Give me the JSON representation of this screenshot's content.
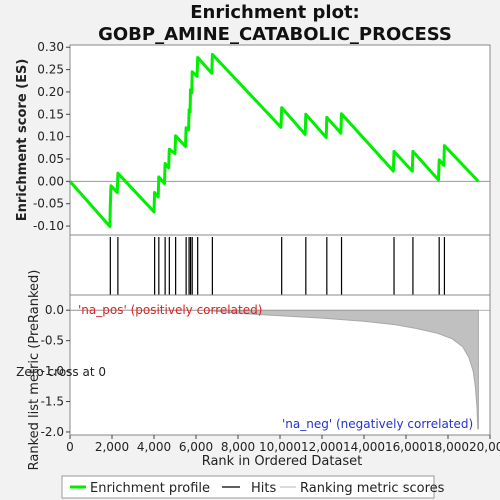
{
  "chart_data": {
    "type": "line",
    "title": [
      "Enrichment plot:",
      "GOBP_AMINE_CATABOLIC_PROCESS"
    ],
    "xlabel": "Rank in Ordered Dataset",
    "xlim": [
      0,
      20000
    ],
    "x_ticks": [
      "0",
      "2,000",
      "4,000",
      "6,000",
      "8,000",
      "10,000",
      "12,000",
      "14,000",
      "16,000",
      "18,000",
      "20,000"
    ],
    "es_panel": {
      "ylabel": "Enrichment score (ES)",
      "ylim": [
        -0.12,
        0.305
      ],
      "y_ticks": [
        "0.30",
        "0.25",
        "0.20",
        "0.15",
        "0.10",
        "0.05",
        "0.00",
        "-0.05",
        "-0.10"
      ],
      "series_name": "Enrichment profile",
      "color": "#00ee00",
      "points": [
        [
          0,
          0.0
        ],
        [
          1900,
          -0.101
        ],
        [
          1920,
          -0.055
        ],
        [
          1950,
          -0.01
        ],
        [
          2250,
          -0.025
        ],
        [
          2280,
          0.018
        ],
        [
          4000,
          -0.068
        ],
        [
          4030,
          -0.025
        ],
        [
          4200,
          -0.035
        ],
        [
          4230,
          0.01
        ],
        [
          4500,
          -0.005
        ],
        [
          4530,
          0.04
        ],
        [
          4700,
          0.03
        ],
        [
          4730,
          0.072
        ],
        [
          5000,
          0.062
        ],
        [
          5030,
          0.102
        ],
        [
          5500,
          0.078
        ],
        [
          5530,
          0.12
        ],
        [
          5650,
          0.115
        ],
        [
          5670,
          0.16
        ],
        [
          5720,
          0.155
        ],
        [
          5740,
          0.205
        ],
        [
          5800,
          0.198
        ],
        [
          5820,
          0.245
        ],
        [
          6050,
          0.235
        ],
        [
          6080,
          0.277
        ],
        [
          6750,
          0.242
        ],
        [
          6780,
          0.284
        ],
        [
          10050,
          0.121
        ],
        [
          10080,
          0.165
        ],
        [
          11200,
          0.105
        ],
        [
          11230,
          0.15
        ],
        [
          12200,
          0.098
        ],
        [
          12230,
          0.143
        ],
        [
          12900,
          0.108
        ],
        [
          12930,
          0.151
        ],
        [
          15400,
          0.023
        ],
        [
          15430,
          0.067
        ],
        [
          16300,
          0.023
        ],
        [
          16330,
          0.067
        ],
        [
          17550,
          0.003
        ],
        [
          17580,
          0.048
        ],
        [
          17800,
          0.036
        ],
        [
          17830,
          0.08
        ],
        [
          19450,
          0.0
        ]
      ]
    },
    "hits_panel": {
      "series_name": "Hits",
      "hits": [
        1920,
        2280,
        4030,
        4230,
        4530,
        4730,
        5030,
        5530,
        5670,
        5740,
        5820,
        6080,
        6780,
        10080,
        11230,
        12230,
        12930,
        15430,
        16330,
        17580,
        17830
      ]
    },
    "metric_panel": {
      "ylabel": "Ranked list metric (PreRanked)",
      "ylim": [
        -2.05,
        0.25
      ],
      "y_ticks": [
        "0.0",
        "-0.5",
        "-1.0",
        "-1.5",
        "-2.0"
      ],
      "series_name": "Ranking metric scores",
      "fill_color": "#c0c0c0",
      "curve": [
        [
          0,
          0.0
        ],
        [
          6500,
          0.0
        ],
        [
          7000,
          -0.02
        ],
        [
          8000,
          -0.05
        ],
        [
          10000,
          -0.09
        ],
        [
          12000,
          -0.13
        ],
        [
          14000,
          -0.18
        ],
        [
          15500,
          -0.24
        ],
        [
          16500,
          -0.3
        ],
        [
          17500,
          -0.38
        ],
        [
          18200,
          -0.47
        ],
        [
          18700,
          -0.6
        ],
        [
          19000,
          -0.78
        ],
        [
          19200,
          -1.0
        ],
        [
          19300,
          -1.25
        ],
        [
          19380,
          -1.6
        ],
        [
          19420,
          -1.95
        ],
        [
          19450,
          -1.95
        ]
      ],
      "pos_label": "'na_pos' (positively correlated)",
      "neg_label": "'na_neg' (negatively correlated)",
      "zero_cross_label": "Zero cross at 0",
      "heatmap_segments": [
        {
          "x0": 0,
          "x1": 10000,
          "color": "#ccccff"
        },
        {
          "x0": 10000,
          "x1": 12500,
          "color": "#7777ee"
        },
        {
          "x0": 12500,
          "x1": 18300,
          "color": "#5544dd"
        },
        {
          "x0": 18300,
          "x1": 19450,
          "color": "#1a00b0"
        }
      ]
    },
    "legend": [
      {
        "label": "Enrichment profile",
        "color": "#00ee00"
      },
      {
        "label": "Hits",
        "color": "#000000"
      },
      {
        "label": "Ranking metric scores",
        "color": "#c0c0c0"
      }
    ]
  }
}
